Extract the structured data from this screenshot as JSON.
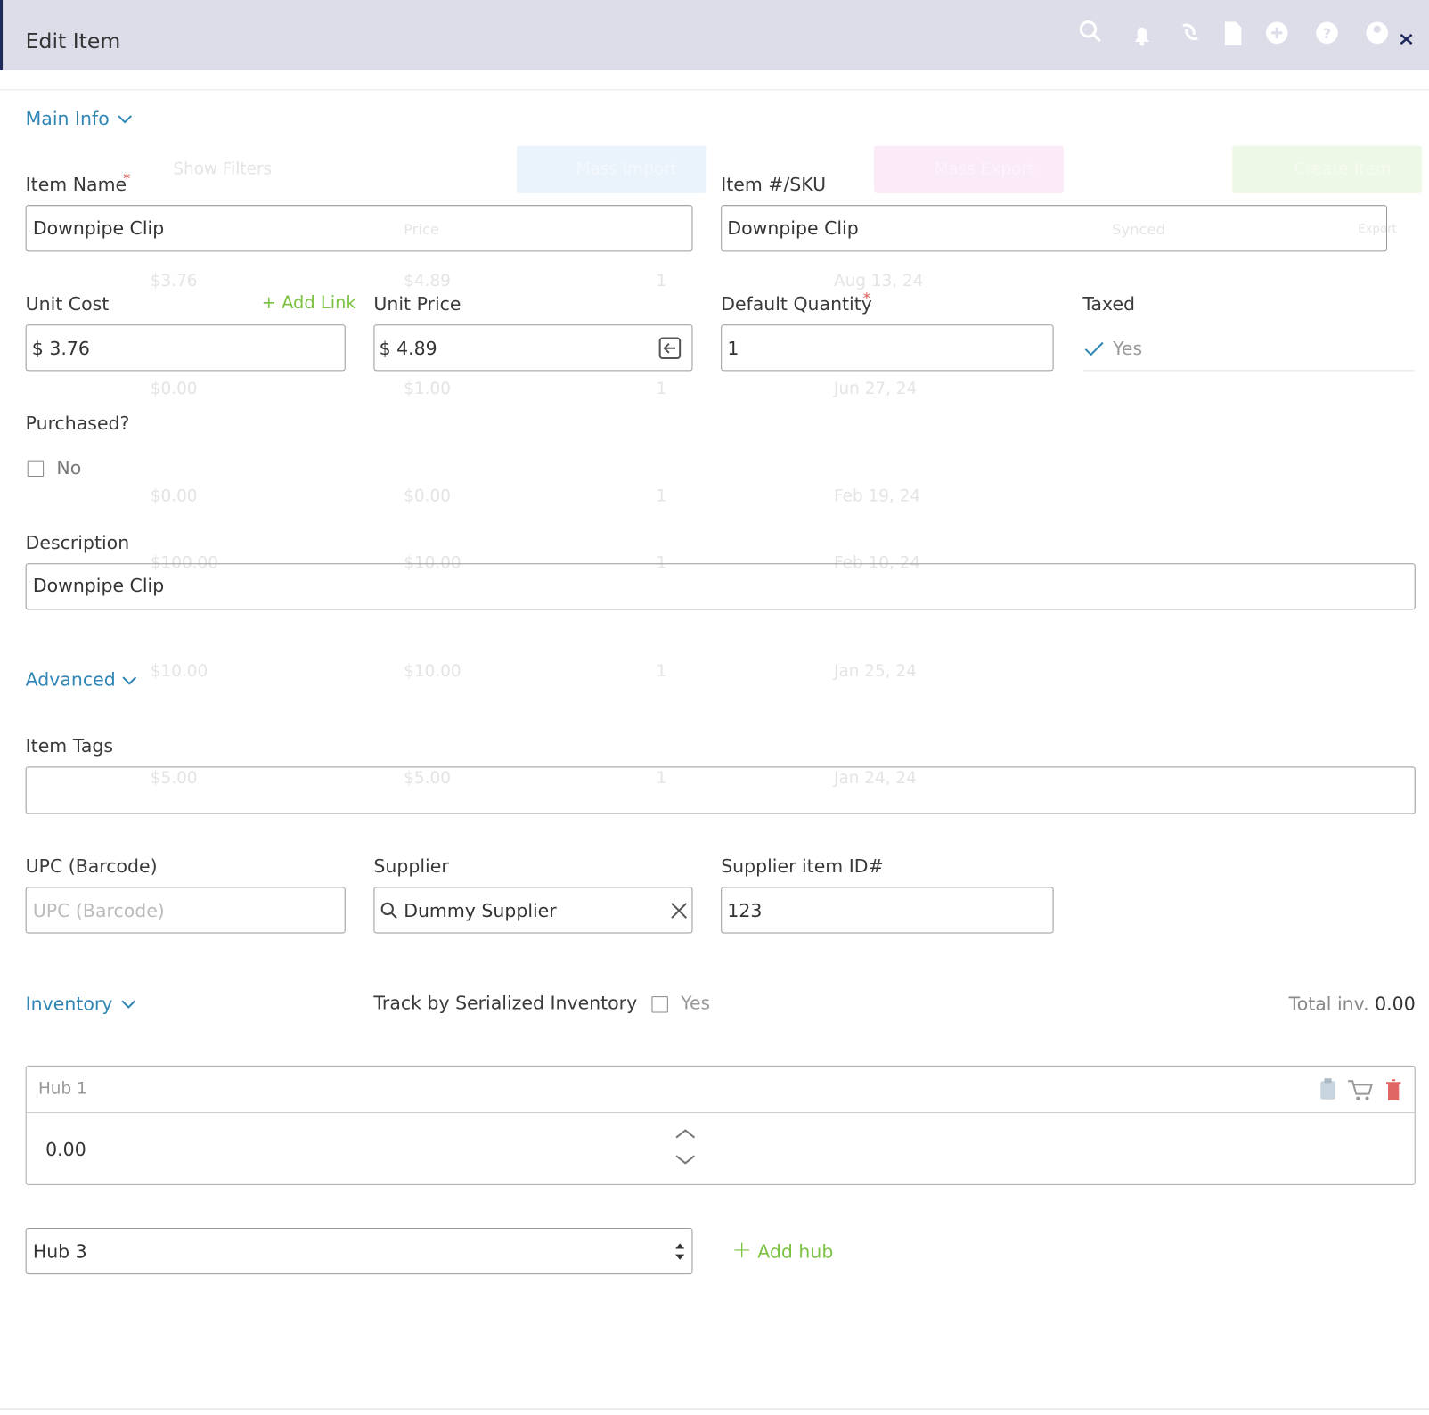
{
  "header": {
    "title": "Edit Item"
  },
  "required_mark": "*",
  "sections": {
    "main_info": "Main Info",
    "advanced": "Advanced",
    "inventory": "Inventory"
  },
  "fields": {
    "item_name": {
      "label": "Item Name",
      "value": "Downpipe Clip"
    },
    "sku": {
      "label": "Item #/SKU",
      "value": "Downpipe Clip"
    },
    "unit_cost": {
      "label": "Unit Cost",
      "prefix": "$",
      "value": "3.76",
      "link": "Add Link"
    },
    "unit_price": {
      "label": "Unit Price",
      "prefix": "$",
      "value": "4.89"
    },
    "default_quantity": {
      "label": "Default Quantity",
      "value": "1"
    },
    "taxed": {
      "label": "Taxed",
      "value": "Yes"
    },
    "purchased": {
      "label": "Purchased?",
      "value": "No"
    },
    "description": {
      "label": "Description",
      "value": "Downpipe Clip"
    },
    "item_tags": {
      "label": "Item Tags"
    },
    "upc": {
      "label": "UPC (Barcode)",
      "placeholder": "UPC (Barcode)"
    },
    "supplier": {
      "label": "Supplier",
      "value": "Dummy Supplier"
    },
    "supplier_item_id": {
      "label": "Supplier item ID#",
      "value": "123"
    }
  },
  "inventory": {
    "track_label": "Track by Serialized Inventory",
    "track_value": "Yes",
    "total_label": "Total inv.",
    "total_value": "0.00",
    "hub": {
      "name": "Hub 1",
      "quantity": "0.00"
    },
    "hub_select": "Hub 3",
    "add_hub": "Add hub"
  },
  "background": {
    "toolbar": [
      "Show Filters",
      "Mass Import",
      "Mass Export",
      "Create Item"
    ],
    "columns": [
      "Price",
      "Synced",
      "Export"
    ],
    "rows": [
      [
        "$3.76",
        "$4.89",
        "1",
        "Aug 13, 24"
      ],
      [
        "$0.00",
        "$1.00",
        "1",
        "Jun 27, 24"
      ],
      [
        "$0.00",
        "$0.00",
        "1",
        "Feb 19, 24"
      ],
      [
        "$100.00",
        "$10.00",
        "1",
        "Feb 10, 24"
      ],
      [
        "$10.00",
        "$10.00",
        "1",
        "Jan 25, 24"
      ],
      [
        "$5.00",
        "$5.00",
        "1",
        "Jan 24, 24"
      ]
    ]
  }
}
